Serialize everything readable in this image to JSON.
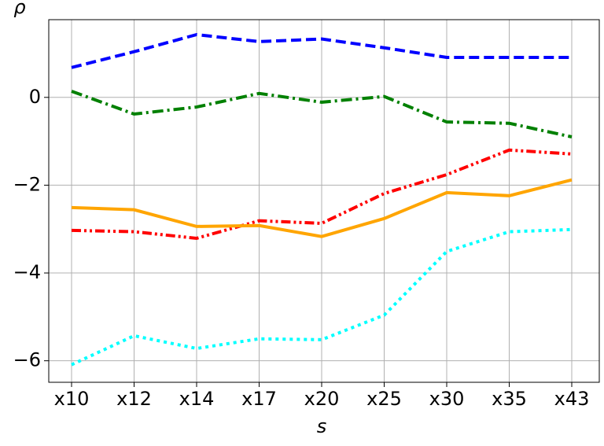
{
  "chart_data": {
    "type": "line",
    "xlabel": "s",
    "ylabel": "ρ",
    "categories": [
      "x10",
      "x12",
      "x14",
      "x17",
      "x20",
      "x25",
      "x30",
      "x35",
      "x43"
    ],
    "ylim": [
      -6.49,
      1.77
    ],
    "yticks": [
      {
        "value": -6,
        "label": "−6"
      },
      {
        "value": -4,
        "label": "−4"
      },
      {
        "value": -2,
        "label": "−2"
      },
      0
    ],
    "grid": true,
    "series": [
      {
        "color": "#0000ff",
        "style": "dashed",
        "values": [
          0.68,
          1.04,
          1.43,
          1.27,
          1.33,
          1.13,
          0.91,
          0.91,
          0.91
        ]
      },
      {
        "color": "#008000",
        "style": "dashdot",
        "values": [
          0.14,
          -0.38,
          -0.22,
          0.09,
          -0.11,
          0.02,
          -0.56,
          -0.59,
          -0.9
        ]
      },
      {
        "color": "#ff0000",
        "style": "dashdotdot",
        "values": [
          -3.03,
          -3.06,
          -3.21,
          -2.81,
          -2.87,
          -2.19,
          -1.76,
          -1.2,
          -1.29
        ]
      },
      {
        "color": "#ffa500",
        "style": "solid",
        "values": [
          -2.51,
          -2.56,
          -2.94,
          -2.92,
          -3.17,
          -2.76,
          -2.17,
          -2.24,
          -1.88
        ]
      },
      {
        "color": "#00ffff",
        "style": "dotted",
        "values": [
          -6.09,
          -5.43,
          -5.72,
          -5.5,
          -5.52,
          -4.96,
          -3.51,
          -3.06,
          -3.01
        ]
      }
    ]
  }
}
